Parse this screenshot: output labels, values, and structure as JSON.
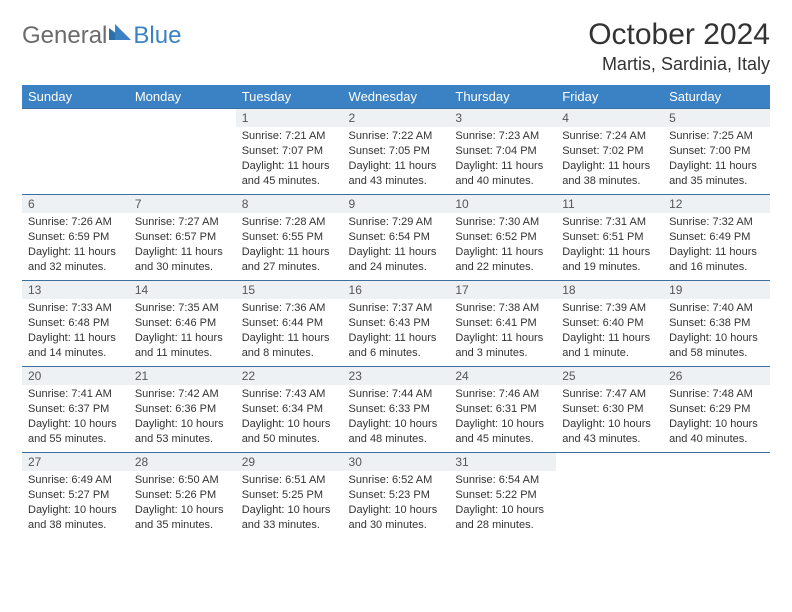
{
  "brand": {
    "part1": "General",
    "part2": "Blue"
  },
  "title": "October 2024",
  "location": "Martis, Sardinia, Italy",
  "colors": {
    "header_bg": "#3b82c4",
    "header_text": "#ffffff",
    "daynum_bg": "#eef1f3",
    "row_border": "#3b6fa0",
    "text": "#333333",
    "logo_gray": "#6b6b6b",
    "logo_blue": "#3b82c4",
    "page_bg": "#ffffff"
  },
  "weekdays": [
    "Sunday",
    "Monday",
    "Tuesday",
    "Wednesday",
    "Thursday",
    "Friday",
    "Saturday"
  ],
  "layout": {
    "first_weekday_index": 2,
    "days_in_month": 31,
    "fontsize_title": 30,
    "fontsize_location": 18,
    "fontsize_weekday": 13,
    "fontsize_daynum": 12,
    "fontsize_body": 11
  },
  "days": [
    {
      "n": 1,
      "sunrise": "7:21 AM",
      "sunset": "7:07 PM",
      "daylight": "11 hours and 45 minutes."
    },
    {
      "n": 2,
      "sunrise": "7:22 AM",
      "sunset": "7:05 PM",
      "daylight": "11 hours and 43 minutes."
    },
    {
      "n": 3,
      "sunrise": "7:23 AM",
      "sunset": "7:04 PM",
      "daylight": "11 hours and 40 minutes."
    },
    {
      "n": 4,
      "sunrise": "7:24 AM",
      "sunset": "7:02 PM",
      "daylight": "11 hours and 38 minutes."
    },
    {
      "n": 5,
      "sunrise": "7:25 AM",
      "sunset": "7:00 PM",
      "daylight": "11 hours and 35 minutes."
    },
    {
      "n": 6,
      "sunrise": "7:26 AM",
      "sunset": "6:59 PM",
      "daylight": "11 hours and 32 minutes."
    },
    {
      "n": 7,
      "sunrise": "7:27 AM",
      "sunset": "6:57 PM",
      "daylight": "11 hours and 30 minutes."
    },
    {
      "n": 8,
      "sunrise": "7:28 AM",
      "sunset": "6:55 PM",
      "daylight": "11 hours and 27 minutes."
    },
    {
      "n": 9,
      "sunrise": "7:29 AM",
      "sunset": "6:54 PM",
      "daylight": "11 hours and 24 minutes."
    },
    {
      "n": 10,
      "sunrise": "7:30 AM",
      "sunset": "6:52 PM",
      "daylight": "11 hours and 22 minutes."
    },
    {
      "n": 11,
      "sunrise": "7:31 AM",
      "sunset": "6:51 PM",
      "daylight": "11 hours and 19 minutes."
    },
    {
      "n": 12,
      "sunrise": "7:32 AM",
      "sunset": "6:49 PM",
      "daylight": "11 hours and 16 minutes."
    },
    {
      "n": 13,
      "sunrise": "7:33 AM",
      "sunset": "6:48 PM",
      "daylight": "11 hours and 14 minutes."
    },
    {
      "n": 14,
      "sunrise": "7:35 AM",
      "sunset": "6:46 PM",
      "daylight": "11 hours and 11 minutes."
    },
    {
      "n": 15,
      "sunrise": "7:36 AM",
      "sunset": "6:44 PM",
      "daylight": "11 hours and 8 minutes."
    },
    {
      "n": 16,
      "sunrise": "7:37 AM",
      "sunset": "6:43 PM",
      "daylight": "11 hours and 6 minutes."
    },
    {
      "n": 17,
      "sunrise": "7:38 AM",
      "sunset": "6:41 PM",
      "daylight": "11 hours and 3 minutes."
    },
    {
      "n": 18,
      "sunrise": "7:39 AM",
      "sunset": "6:40 PM",
      "daylight": "11 hours and 1 minute."
    },
    {
      "n": 19,
      "sunrise": "7:40 AM",
      "sunset": "6:38 PM",
      "daylight": "10 hours and 58 minutes."
    },
    {
      "n": 20,
      "sunrise": "7:41 AM",
      "sunset": "6:37 PM",
      "daylight": "10 hours and 55 minutes."
    },
    {
      "n": 21,
      "sunrise": "7:42 AM",
      "sunset": "6:36 PM",
      "daylight": "10 hours and 53 minutes."
    },
    {
      "n": 22,
      "sunrise": "7:43 AM",
      "sunset": "6:34 PM",
      "daylight": "10 hours and 50 minutes."
    },
    {
      "n": 23,
      "sunrise": "7:44 AM",
      "sunset": "6:33 PM",
      "daylight": "10 hours and 48 minutes."
    },
    {
      "n": 24,
      "sunrise": "7:46 AM",
      "sunset": "6:31 PM",
      "daylight": "10 hours and 45 minutes."
    },
    {
      "n": 25,
      "sunrise": "7:47 AM",
      "sunset": "6:30 PM",
      "daylight": "10 hours and 43 minutes."
    },
    {
      "n": 26,
      "sunrise": "7:48 AM",
      "sunset": "6:29 PM",
      "daylight": "10 hours and 40 minutes."
    },
    {
      "n": 27,
      "sunrise": "6:49 AM",
      "sunset": "5:27 PM",
      "daylight": "10 hours and 38 minutes."
    },
    {
      "n": 28,
      "sunrise": "6:50 AM",
      "sunset": "5:26 PM",
      "daylight": "10 hours and 35 minutes."
    },
    {
      "n": 29,
      "sunrise": "6:51 AM",
      "sunset": "5:25 PM",
      "daylight": "10 hours and 33 minutes."
    },
    {
      "n": 30,
      "sunrise": "6:52 AM",
      "sunset": "5:23 PM",
      "daylight": "10 hours and 30 minutes."
    },
    {
      "n": 31,
      "sunrise": "6:54 AM",
      "sunset": "5:22 PM",
      "daylight": "10 hours and 28 minutes."
    }
  ],
  "labels": {
    "sunrise": "Sunrise:",
    "sunset": "Sunset:",
    "daylight": "Daylight:"
  }
}
